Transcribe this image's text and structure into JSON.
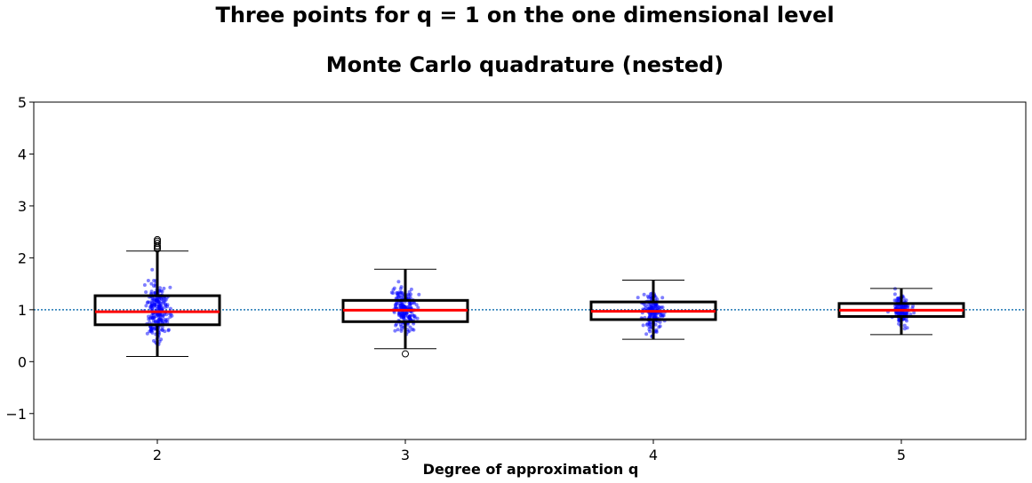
{
  "chart_data": {
    "type": "box",
    "title": [
      "Three points for q = 1 on the one dimensional level",
      "Monte Carlo quadrature (nested)"
    ],
    "xlabel": "Degree of approximation q",
    "ylabel": "",
    "categories": [
      "2",
      "3",
      "4",
      "5"
    ],
    "ylim": [
      -1.5,
      5
    ],
    "yticks": [
      -1,
      0,
      1,
      2,
      3,
      4,
      5
    ],
    "ytick_labels": [
      "−1",
      "0",
      "1",
      "2",
      "3",
      "4",
      "5"
    ],
    "reference_line": {
      "y": 1,
      "style": "dotted",
      "color": "#1f77b4"
    },
    "grid": false,
    "colors": {
      "box": "#000000",
      "median": "#ff0000",
      "points": "#0000ff"
    },
    "boxes": [
      {
        "category": "2",
        "whisker_low": 0.1,
        "q1": 0.71,
        "median": 0.96,
        "q3": 1.27,
        "whisker_high": 2.13,
        "outliers": [
          2.17,
          2.2,
          2.23,
          2.28,
          2.32,
          2.35
        ]
      },
      {
        "category": "3",
        "whisker_low": 0.25,
        "q1": 0.77,
        "median": 0.99,
        "q3": 1.18,
        "whisker_high": 1.78,
        "outliers": [
          0.15
        ]
      },
      {
        "category": "4",
        "whisker_low": 0.43,
        "q1": 0.81,
        "median": 0.97,
        "q3": 1.15,
        "whisker_high": 1.57,
        "outliers": []
      },
      {
        "category": "5",
        "whisker_low": 0.52,
        "q1": 0.87,
        "median": 0.99,
        "q3": 1.12,
        "whisker_high": 1.41,
        "outliers": []
      }
    ]
  }
}
